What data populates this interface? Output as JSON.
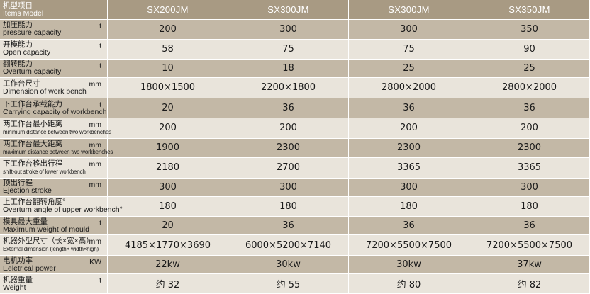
{
  "header": {
    "label_zh": "机型项目",
    "label_en": "Items Model",
    "models": [
      "SX200JM",
      "SX300JM",
      "SX300JM",
      "SX350JM"
    ]
  },
  "rows": [
    {
      "zh": "加压能力",
      "en": "pressure capacity",
      "unit": "t",
      "small": false,
      "values": [
        "200",
        "300",
        "300",
        "350"
      ]
    },
    {
      "zh": "开模能力",
      "en": "Open capacity",
      "unit": "t",
      "small": false,
      "values": [
        "58",
        "75",
        "75",
        "90"
      ]
    },
    {
      "zh": "翻转能力",
      "en": "Overturn capacity",
      "unit": "t",
      "small": false,
      "values": [
        "10",
        "18",
        "25",
        "25"
      ]
    },
    {
      "zh": "工作台尺寸",
      "en": "Dimension of work bench",
      "unit": "mm",
      "small": false,
      "values": [
        "1800×1500",
        "2200×1800",
        "2800×2000",
        "2800×2000"
      ]
    },
    {
      "zh": "下工作台承载能力",
      "en": "Carrying capacity of workbench",
      "unit": "t",
      "small": false,
      "values": [
        "20",
        "36",
        "36",
        "36"
      ]
    },
    {
      "zh": "两工作台最小距离",
      "en": "minimum distance between two workbenches",
      "unit": "mm",
      "small": true,
      "values": [
        "200",
        "200",
        "200",
        "200"
      ]
    },
    {
      "zh": "两工作台最大距离",
      "en": "maximum distance between two workbenches",
      "unit": "mm",
      "small": true,
      "values": [
        "1900",
        "2300",
        "2300",
        "2300"
      ]
    },
    {
      "zh": "下工作台移出行程",
      "en": "shift-out stroke of lower workbench",
      "unit": "mm",
      "small": true,
      "values": [
        "2180",
        "2700",
        "3365",
        "3365"
      ]
    },
    {
      "zh": "顶出行程",
      "en": "Ejection stroke",
      "unit": "mm",
      "small": false,
      "values": [
        "300",
        "300",
        "300",
        "300"
      ]
    },
    {
      "zh": "上工作台翻转角度°",
      "en": "Overturn angle of upper workbench°",
      "unit": "",
      "small": false,
      "values": [
        "180",
        "180",
        "180",
        "180"
      ]
    },
    {
      "zh": "模具最大重量",
      "en": "Maximum weight of mould",
      "unit": "t",
      "small": false,
      "values": [
        "20",
        "36",
        "36",
        "36"
      ]
    },
    {
      "zh": "机器外型尺寸（长×宽×高）",
      "en": "External dimension (length× width×high)",
      "unit": "mm",
      "small": true,
      "values": [
        "4185×1770×3690",
        "6000×5200×7140",
        "7200×5500×7500",
        "7200×5500×7500"
      ]
    },
    {
      "zh": "电机功率",
      "en": "Eeletrical power",
      "unit": "KW",
      "small": false,
      "values": [
        "22kw",
        "30kw",
        "30kw",
        "37kw"
      ]
    },
    {
      "zh": "机器重量",
      "en": "Weight",
      "unit": "t",
      "small": false,
      "values": [
        "约 32",
        "约 55",
        "约 80",
        "约 82"
      ]
    }
  ]
}
